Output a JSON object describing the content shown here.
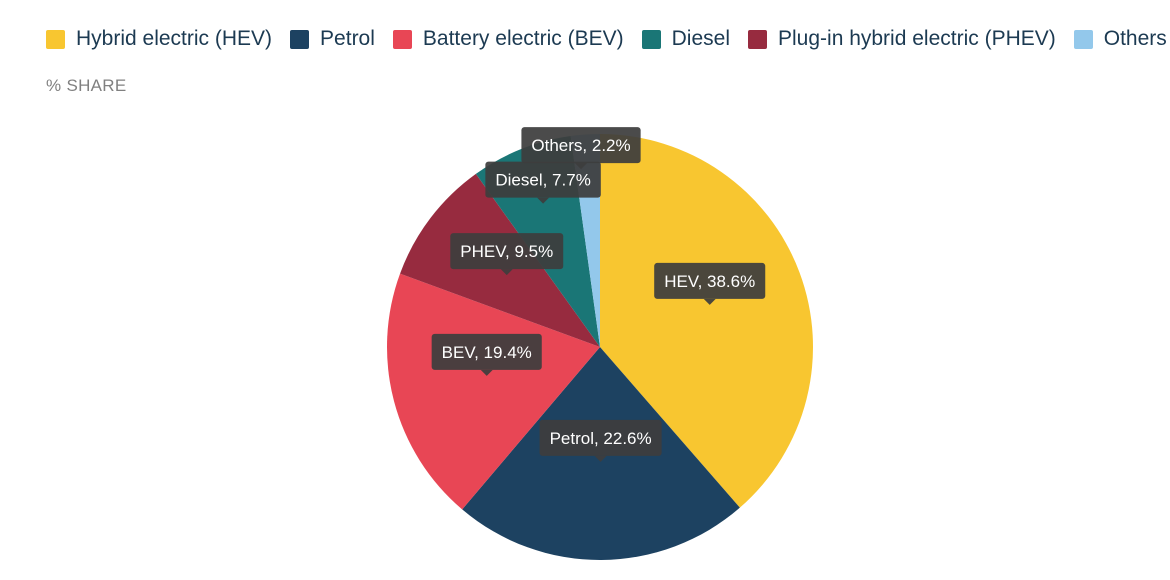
{
  "legend_items": [
    {
      "label": "Hybrid electric (HEV)",
      "color": "#f8c630"
    },
    {
      "label": "Petrol",
      "color": "#1d4261"
    },
    {
      "label": "Battery electric (BEV)",
      "color": "#e84655"
    },
    {
      "label": "Diesel",
      "color": "#1a7676"
    },
    {
      "label": "Plug-in hybrid electric (PHEV)",
      "color": "#972b3f"
    },
    {
      "label": "Others",
      "color": "#93c8eb"
    }
  ],
  "subtitle": "% SHARE",
  "chart_data": {
    "type": "pie",
    "categories": [
      "HEV",
      "Petrol",
      "BEV",
      "PHEV",
      "Diesel",
      "Others"
    ],
    "values": [
      38.6,
      22.6,
      19.4,
      9.5,
      7.7,
      2.2
    ],
    "colors": [
      "#f8c630",
      "#1d4261",
      "#e84655",
      "#972b3f",
      "#1a7676",
      "#93c8eb"
    ],
    "data_labels": [
      "HEV, 38.6%",
      "Petrol, 22.6%",
      "BEV, 19.4%",
      "PHEV, 9.5%",
      "Diesel, 7.7%",
      "Others, 2.2%"
    ],
    "ylabel": "% SHARE",
    "start_angle_deg": 0,
    "direction": "clockwise"
  }
}
